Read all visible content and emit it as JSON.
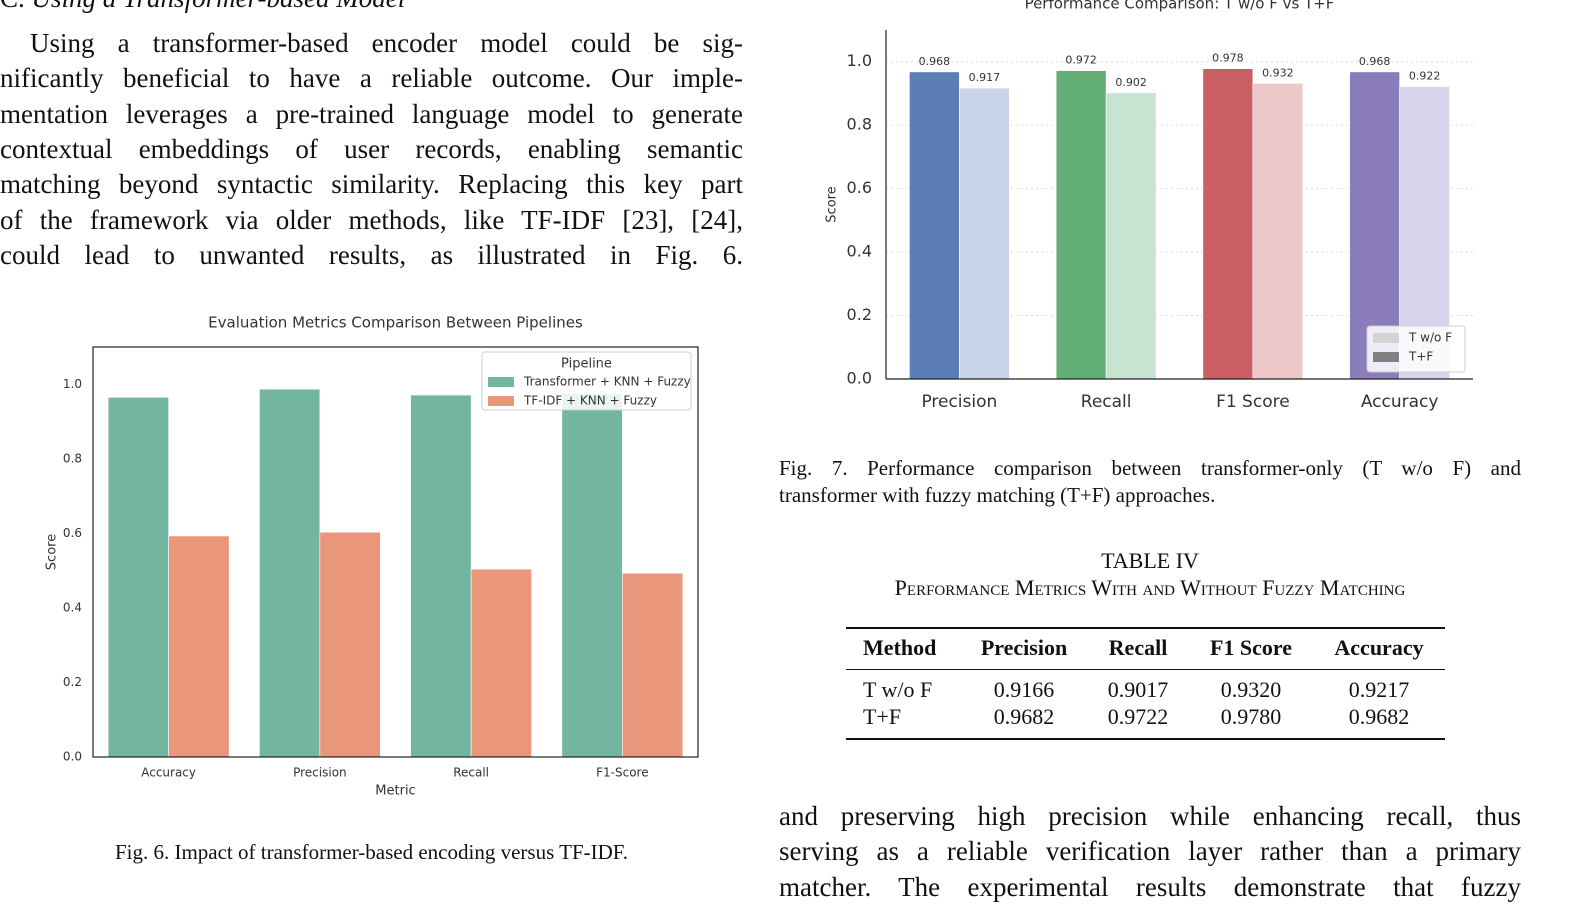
{
  "section": {
    "label": "C.",
    "title": "Using a Transformer-based Model"
  },
  "paragraph_left": {
    "lines": [
      "Using a transformer-based encoder model could be sig-",
      "nificantly beneficial to have a reliable outcome. Our imple-",
      "mentation leverages a pre-trained language model to generate",
      "contextual embeddings of user records, enabling semantic",
      "matching beyond syntactic similarity. Replacing this key part",
      "of the framework via older methods, like TF-IDF [23], [24],",
      "could lead to unwanted results, as illustrated in Fig. 6."
    ]
  },
  "chart_data": [
    {
      "type": "bar",
      "title": "Evaluation Metrics Comparison Between Pipelines",
      "xlabel": "Metric",
      "ylabel": "Score",
      "categories": [
        "Accuracy",
        "Precision",
        "Recall",
        "F1-Score"
      ],
      "series": [
        {
          "name": "Transformer + KNN + Fuzzy",
          "color": "#72b6a1",
          "values": [
            0.965,
            0.987,
            0.971,
            0.975
          ]
        },
        {
          "name": "TF-IDF + KNN + Fuzzy",
          "color": "#e9967a",
          "values": [
            0.593,
            0.603,
            0.504,
            0.493
          ]
        }
      ],
      "legend_title": "Pipeline",
      "legend": "upper right",
      "ylim": [
        0,
        1.1
      ],
      "yticks": [
        {
          "value": 0,
          "label": "0.0"
        },
        0.2,
        0.4,
        0.6,
        0.8,
        {
          "value": 1,
          "label": "1.0"
        }
      ],
      "grid": false
    },
    {
      "type": "bar",
      "title": "Performance Comparison: T w/o F vs T+F",
      "ylabel": "Score",
      "categories": [
        "Precision",
        "Recall",
        "F1 Score",
        "Accuracy"
      ],
      "series": [
        {
          "name": "T w/o F",
          "color": "#d3d3d3",
          "colors": [
            "#c9d4e8",
            "#c8e3d0",
            "#edc6c8",
            "#d7d3ea"
          ],
          "values": [
            0.917,
            0.902,
            0.932,
            0.922
          ]
        },
        {
          "name": "T+F",
          "color": "#808080",
          "colors": [
            "#5b7fb5",
            "#62ae74",
            "#c95e63",
            "#8b7dba"
          ],
          "values": [
            0.968,
            0.972,
            0.978,
            0.968
          ]
        }
      ],
      "legend": "lower right",
      "ylim": [
        0,
        1.1
      ],
      "yticks": [
        {
          "value": 0,
          "label": "0.0"
        },
        0.2,
        0.4,
        0.6,
        0.8,
        {
          "value": 1,
          "label": "1.0"
        }
      ],
      "grid": true
    }
  ],
  "fig6_caption": "Fig. 6.  Impact of transformer-based encoding versus TF-IDF.",
  "fig7_caption": {
    "lines": [
      "Fig. 7.  Performance comparison between transformer-only (T w/o F) and",
      "transformer with fuzzy matching (T+F) approaches."
    ]
  },
  "table": {
    "label": "TABLE IV",
    "title": "Performance Metrics With and Without Fuzzy Matching",
    "header": [
      "Method",
      "Precision",
      "Recall",
      "F1 Score",
      "Accuracy"
    ],
    "rows": [
      [
        "T w/o F",
        "0.9166",
        "0.9017",
        "0.9320",
        "0.9217"
      ],
      [
        "T+F",
        "0.9682",
        "0.9722",
        "0.9780",
        "0.9682"
      ]
    ]
  },
  "paragraph_right": {
    "lines": [
      "and preserving high precision while enhancing recall, thus",
      "serving as a reliable verification layer rather than a primary",
      "matcher. The experimental results demonstrate that fuzzy"
    ]
  }
}
